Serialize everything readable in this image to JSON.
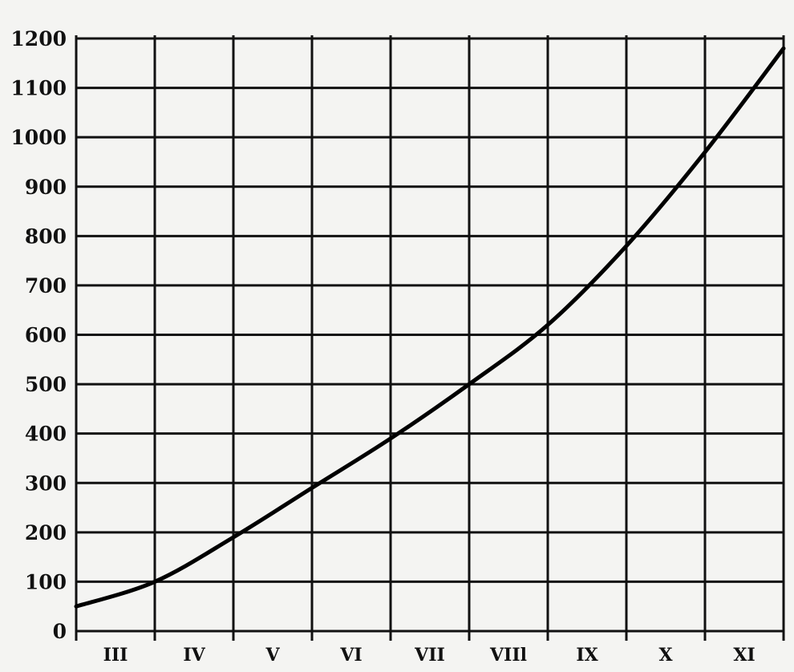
{
  "chart_data": {
    "type": "line",
    "title": "",
    "xlabel": "",
    "ylabel": "",
    "categories": [
      "III",
      "IV",
      "V",
      "VI",
      "VII",
      "VIIl",
      "IX",
      "X",
      "XI"
    ],
    "yticks": [
      0,
      100,
      200,
      300,
      400,
      500,
      600,
      700,
      800,
      900,
      1000,
      1100,
      1200
    ],
    "ylim": [
      0,
      1200
    ],
    "grid": true,
    "legend": "none",
    "series": [
      {
        "x": [
          0,
          1,
          2,
          3,
          4,
          5,
          6,
          7,
          8,
          9
        ],
        "values": [
          50,
          100,
          190,
          290,
          390,
          500,
          620,
          780,
          970,
          1180
        ]
      }
    ],
    "line_color": "#000000"
  }
}
